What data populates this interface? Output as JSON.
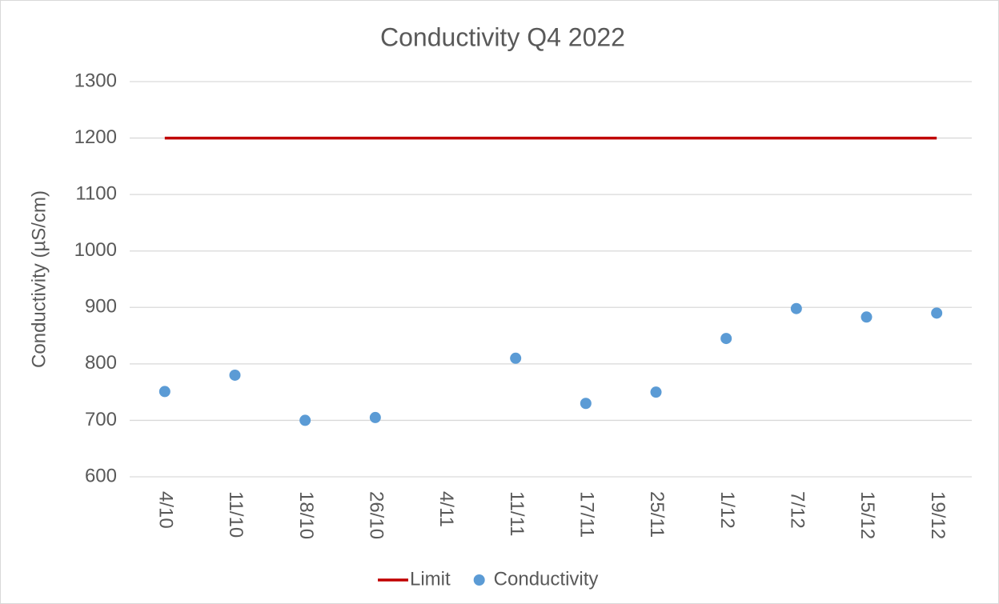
{
  "chart_data": {
    "type": "line",
    "title": "Conductivity Q4 2022",
    "y_label": "Conductivity (µS/cm)",
    "categories": [
      "4/10",
      "11/10",
      "18/10",
      "26/10",
      "4/11",
      "11/11",
      "17/11",
      "25/11",
      "1/12",
      "7/12",
      "15/12",
      "19/12"
    ],
    "series": [
      {
        "name": "Limit",
        "kind": "line",
        "color": "#c00000",
        "values": [
          1200,
          1200,
          1200,
          1200,
          1200,
          1200,
          1200,
          1200,
          1200,
          1200,
          1200,
          1200
        ]
      },
      {
        "name": "Conductivity",
        "kind": "scatter",
        "color": "#5b9bd5",
        "values": [
          751,
          780,
          700,
          705,
          null,
          810,
          730,
          750,
          845,
          898,
          883,
          890
        ]
      }
    ],
    "ylim": [
      600,
      1300
    ],
    "yticks": [
      600,
      700,
      800,
      900,
      1000,
      1100,
      1200,
      1300
    ],
    "grid": true,
    "legend": "bottom"
  }
}
